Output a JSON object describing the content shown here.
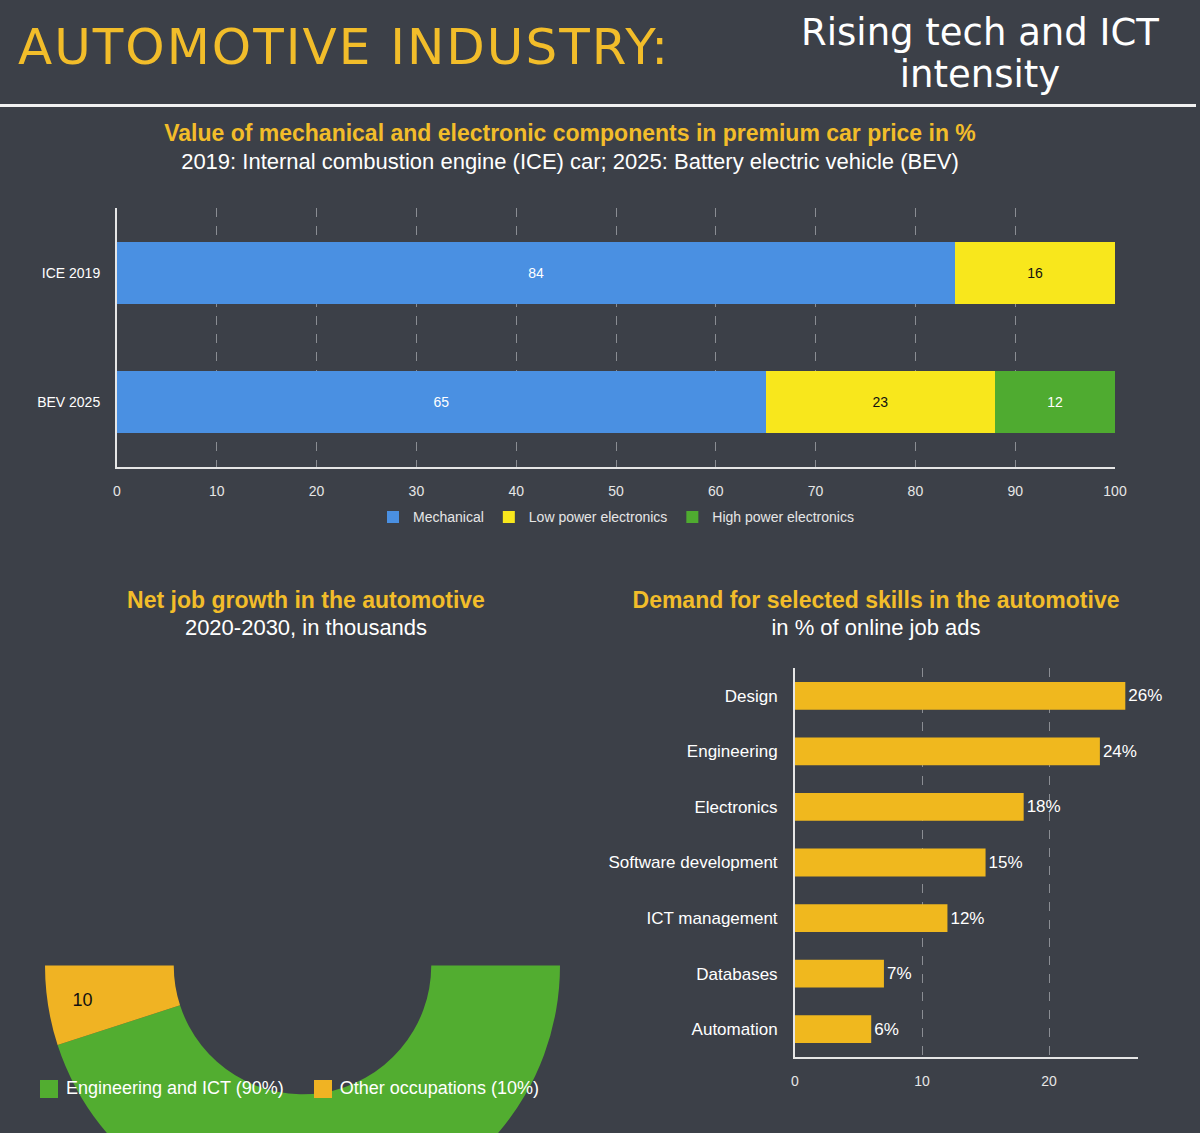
{
  "header": {
    "title": "AUTOMOTIVE INDUSTRY:",
    "subtitle": "Rising tech and ICT intensity"
  },
  "chart_data": [
    {
      "type": "bar",
      "title": "Value of mechanical and electronic components in premium car price in %",
      "subtitle": "2019: Internal combustion engine (ICE) car; 2025: Battery electric vehicle (BEV)",
      "orientation": "horizontal",
      "stacked": true,
      "categories": [
        "ICE 2019",
        "BEV 2025"
      ],
      "series": [
        {
          "name": "Mechanical",
          "color": "#4a90e2",
          "values": [
            84,
            65
          ]
        },
        {
          "name": "Low power electronics",
          "color": "#f8e71c",
          "values": [
            16,
            23
          ]
        },
        {
          "name": "High power electronics",
          "color": "#4fab30",
          "values": [
            null,
            12
          ]
        }
      ],
      "xlim": [
        0,
        100
      ],
      "xticks": [
        0,
        10,
        20,
        30,
        40,
        50,
        60,
        70,
        80,
        90,
        100
      ],
      "grid": true,
      "data_labels": true,
      "legend": "bottom"
    },
    {
      "type": "pie",
      "title": "Net job growth in the automotive",
      "subtitle": "2020-2030, in thousands",
      "categories": [
        "Engineering and ICT (90%)",
        "Other occupations (10%)"
      ],
      "values": [
        90,
        10
      ],
      "colors": [
        "#52ad30",
        "#f0b323"
      ],
      "data_labels": true,
      "legend": "bottom"
    },
    {
      "type": "bar",
      "title": "Demand for selected skills in the automotive",
      "subtitle": "in % of online job ads",
      "orientation": "horizontal",
      "categories": [
        "Design",
        "Engineering",
        "Electronics",
        "Software development",
        "ICT management",
        "Databases",
        "Automation"
      ],
      "values": [
        26,
        24,
        18,
        15,
        12,
        7,
        6
      ],
      "value_labels": [
        "26%",
        "24%",
        "18%",
        "15%",
        "12%",
        "7%",
        "6%"
      ],
      "color": "#f0b81e",
      "xlim": [
        0,
        27
      ],
      "xticks": [
        0,
        10,
        20
      ],
      "grid": true,
      "data_labels": true
    }
  ]
}
